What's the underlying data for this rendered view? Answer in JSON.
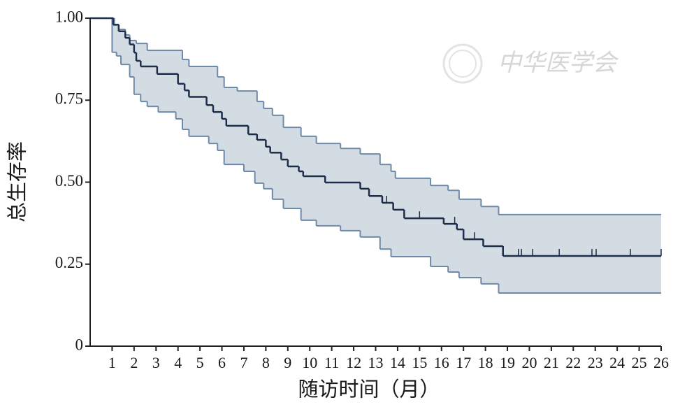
{
  "chart_data": {
    "type": "km",
    "y_label": "总生存率",
    "x_label": "随访时间（月）",
    "watermark": "中华医学会",
    "xlim": [
      0,
      26
    ],
    "xticks": [
      1,
      2,
      3,
      4,
      5,
      6,
      7,
      8,
      9,
      10,
      11,
      12,
      13,
      14,
      15,
      16,
      17,
      18,
      19,
      20,
      21,
      22,
      23,
      24,
      25,
      26
    ],
    "ylim": [
      0,
      1
    ],
    "yticks": [
      0,
      0.25,
      {
        "value": 0.5,
        "label": "0.50"
      },
      0.75,
      {
        "value": 1,
        "label": "1.00"
      }
    ],
    "survival": {
      "color": "#1c2e4a",
      "x": [
        0,
        1.05,
        1.3,
        1.6,
        1.8,
        2.0,
        2.1,
        2.3,
        3.05,
        4.0,
        4.3,
        4.5,
        5.3,
        5.6,
        6.0,
        6.2,
        7.2,
        7.6,
        8.0,
        8.2,
        8.7,
        9.0,
        9.5,
        9.7,
        10.7,
        12.3,
        12.7,
        13.3,
        13.8,
        14.3,
        16.1,
        16.7,
        17.0,
        17.9,
        18.8
      ],
      "values": [
        1.0,
        0.98,
        0.96,
        0.94,
        0.92,
        0.895,
        0.87,
        0.853,
        0.83,
        0.8,
        0.78,
        0.76,
        0.735,
        0.714,
        0.693,
        0.672,
        0.646,
        0.629,
        0.608,
        0.59,
        0.569,
        0.548,
        0.533,
        0.518,
        0.499,
        0.48,
        0.458,
        0.437,
        0.416,
        0.39,
        0.373,
        0.356,
        0.326,
        0.305,
        0.275
      ]
    },
    "ci_upper": {
      "color": "#6e8aa8",
      "x": [
        0,
        1.1,
        1.3,
        1.6,
        1.8,
        2.1,
        2.6,
        4.2,
        4.5,
        5.8,
        6.1,
        6.7,
        7.6,
        7.9,
        8.3,
        8.8,
        9.6,
        10.3,
        11.4,
        12.3,
        13.2,
        13.7,
        13.9,
        15.5,
        16.3,
        16.8,
        17.8,
        18.6
      ],
      "values": [
        1.0,
        0.981,
        0.966,
        0.949,
        0.932,
        0.923,
        0.902,
        0.874,
        0.853,
        0.821,
        0.789,
        0.778,
        0.746,
        0.725,
        0.704,
        0.667,
        0.64,
        0.618,
        0.603,
        0.586,
        0.554,
        0.533,
        0.512,
        0.49,
        0.475,
        0.448,
        0.426,
        0.401
      ]
    },
    "ci_lower": {
      "color": "#6e8aa8",
      "x": [
        0,
        1.0,
        1.2,
        1.4,
        1.8,
        2.0,
        2.3,
        2.6,
        3.1,
        3.9,
        4.2,
        4.5,
        5.4,
        5.8,
        6.1,
        7.0,
        7.5,
        7.9,
        8.3,
        8.8,
        9.6,
        10.3,
        11.4,
        12.3,
        13.2,
        13.7,
        15.5,
        16.3,
        16.8,
        17.8,
        18.6
      ],
      "values": [
        1.0,
        0.896,
        0.885,
        0.859,
        0.821,
        0.768,
        0.746,
        0.731,
        0.714,
        0.693,
        0.661,
        0.64,
        0.618,
        0.597,
        0.554,
        0.533,
        0.497,
        0.48,
        0.448,
        0.42,
        0.384,
        0.367,
        0.352,
        0.333,
        0.296,
        0.273,
        0.243,
        0.226,
        0.209,
        0.19,
        0.162
      ]
    },
    "band_color": "#d3dbe3",
    "censored": {
      "x": [
        13.5,
        15.0,
        16.6,
        17.5,
        19.5,
        19.64,
        20.15,
        21.36,
        22.85,
        23.04,
        24.6,
        26
      ],
      "values": [
        0.437,
        0.39,
        0.373,
        0.326,
        0.275,
        0.275,
        0.275,
        0.275,
        0.275,
        0.275,
        0.275,
        0.275
      ]
    }
  }
}
